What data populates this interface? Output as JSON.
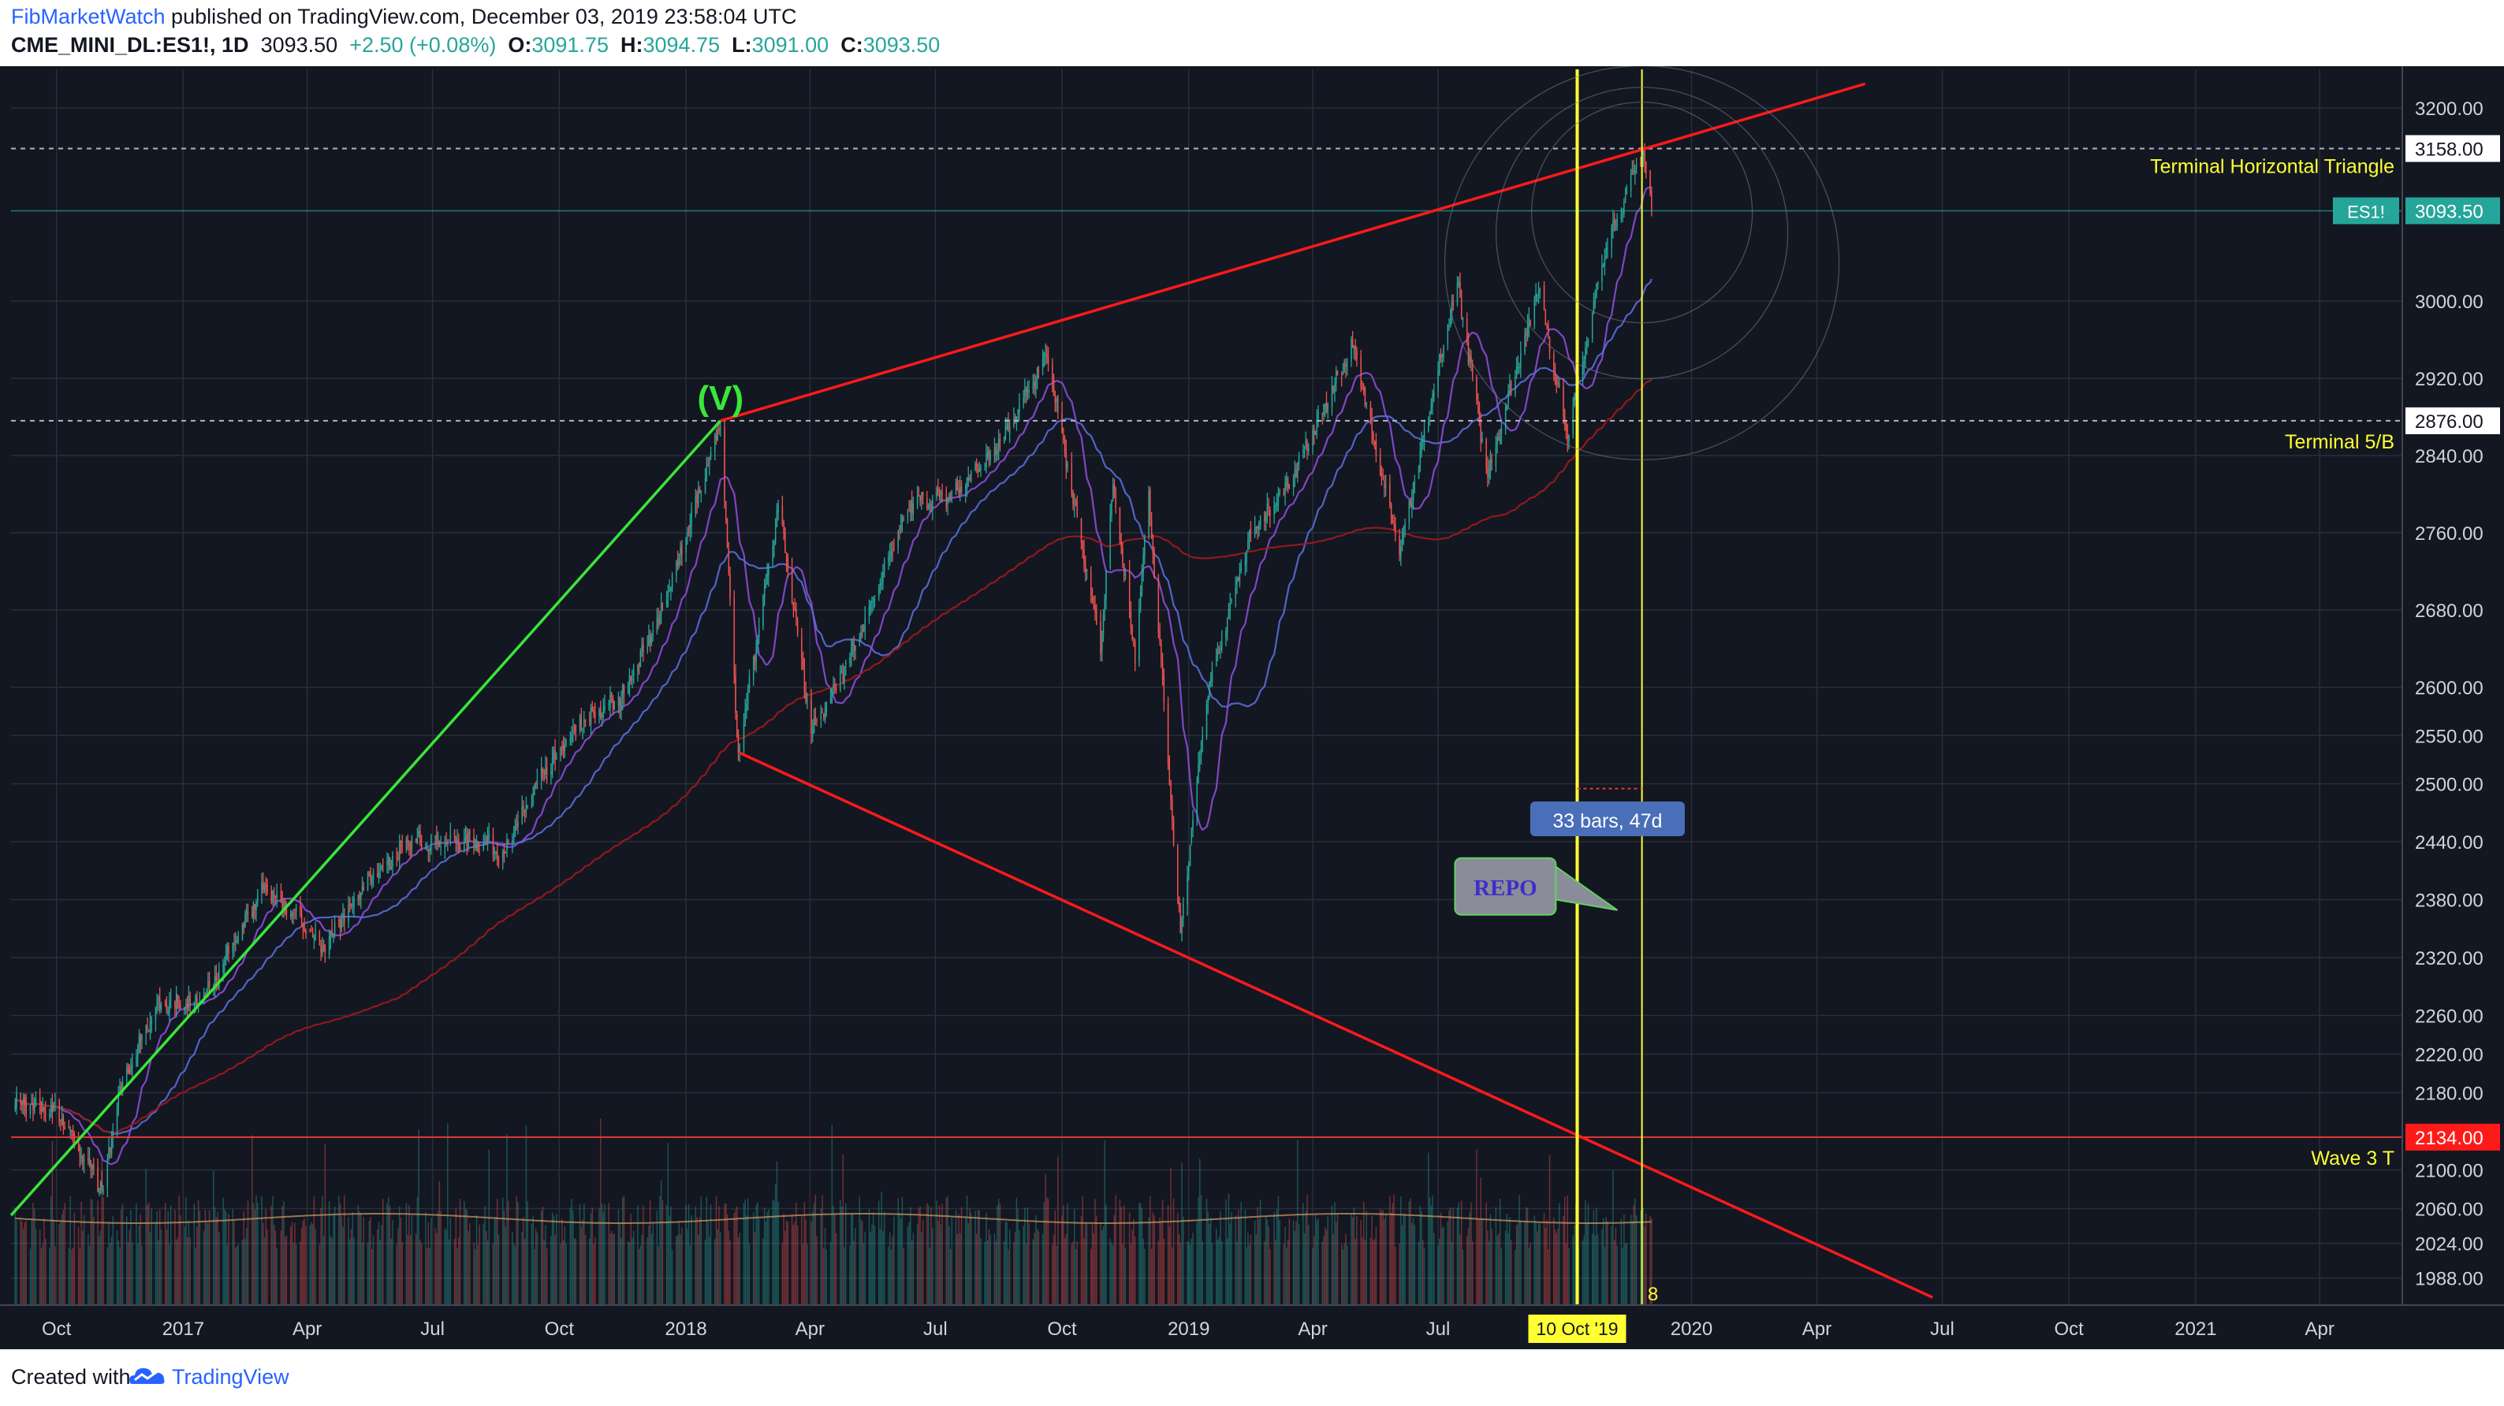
{
  "header": {
    "author": "FibMarketWatch",
    "published_text": " published on TradingView.com, December 03, 2019 23:58:04 UTC",
    "symbol": "CME_MINI_DL:ES1!, 1D",
    "last": "3093.50",
    "change": "+2.50 (+0.08%)",
    "o_label": "O:",
    "o": "3091.75",
    "h_label": "H:",
    "h": "3094.75",
    "l_label": "L:",
    "l": "3091.00",
    "c_label": "C:",
    "c": "3093.50"
  },
  "footer": {
    "created_with": "Created with",
    "brand": "TradingView"
  },
  "colors": {
    "background": "#131722",
    "grid": "#2a2e39",
    "up": "#26a69a",
    "down": "#ef5350",
    "red_line": "#ff1a1a",
    "green_line": "#39e639",
    "yellow": "#ffff33",
    "purple_ma": "#8c4bd6",
    "ma_blue": "#5b6bd6",
    "ma_red": "#a01a1a"
  },
  "chart_data": {
    "type": "candlestick",
    "title": "",
    "xlabel": "",
    "ylabel": "",
    "x_range": [
      "2016-08-29",
      "2021-05-31"
    ],
    "ylim": [
      1960,
      3240
    ],
    "y_ticks": [
      1988,
      2024,
      2060,
      2100,
      2134,
      2180,
      2220,
      2260,
      2320,
      2380,
      2440,
      2500,
      2550,
      2600,
      2680,
      2760,
      2840,
      2876,
      2920,
      3000,
      3093.5,
      3158,
      3200
    ],
    "y_tick_labels": [
      "1988.00",
      "2024.00",
      "2060.00",
      "2100.00",
      "2134.00",
      "2180.00",
      "2220.00",
      "2260.00",
      "2320.00",
      "2380.00",
      "2440.00",
      "2500.00",
      "2550.00",
      "2600.00",
      "2680.00",
      "2760.00",
      "2840.00",
      "2876.00",
      "2920.00",
      "3000.00",
      "3093.50",
      "3158.00",
      "3200.00"
    ],
    "x_ticks": [
      {
        "date": "2016-10-01",
        "label": "Oct"
      },
      {
        "date": "2017-01-01",
        "label": "2017"
      },
      {
        "date": "2017-04-01",
        "label": "Apr"
      },
      {
        "date": "2017-07-01",
        "label": "Jul"
      },
      {
        "date": "2017-10-01",
        "label": "Oct"
      },
      {
        "date": "2018-01-01",
        "label": "2018"
      },
      {
        "date": "2018-04-01",
        "label": "Apr"
      },
      {
        "date": "2018-07-01",
        "label": "Jul"
      },
      {
        "date": "2018-10-01",
        "label": "Oct"
      },
      {
        "date": "2019-01-01",
        "label": "2019"
      },
      {
        "date": "2019-04-01",
        "label": "Apr"
      },
      {
        "date": "2019-07-01",
        "label": "Jul"
      },
      {
        "date": "2020-01-01",
        "label": "2020"
      },
      {
        "date": "2020-04-01",
        "label": "Apr"
      },
      {
        "date": "2020-07-01",
        "label": "Jul"
      },
      {
        "date": "2020-10-01",
        "label": "Oct"
      },
      {
        "date": "2021-01-01",
        "label": "2021"
      },
      {
        "date": "2021-04-01",
        "label": "Apr"
      }
    ],
    "price_series": [
      [
        "2016-09-01",
        2170
      ],
      [
        "2016-10-01",
        2160
      ],
      [
        "2016-11-04",
        2080
      ],
      [
        "2016-11-15",
        2180
      ],
      [
        "2016-12-13",
        2270
      ],
      [
        "2017-01-15",
        2275
      ],
      [
        "2017-03-01",
        2395
      ],
      [
        "2017-04-13",
        2330
      ],
      [
        "2017-05-15",
        2400
      ],
      [
        "2017-06-15",
        2440
      ],
      [
        "2017-08-10",
        2440
      ],
      [
        "2017-08-21",
        2425
      ],
      [
        "2017-09-15",
        2500
      ],
      [
        "2017-10-15",
        2560
      ],
      [
        "2017-11-15",
        2590
      ],
      [
        "2017-12-15",
        2680
      ],
      [
        "2018-01-26",
        2872
      ],
      [
        "2018-02-08",
        2530
      ],
      [
        "2018-03-09",
        2790
      ],
      [
        "2018-04-02",
        2555
      ],
      [
        "2018-05-03",
        2640
      ],
      [
        "2018-06-13",
        2790
      ],
      [
        "2018-07-15",
        2800
      ],
      [
        "2018-08-15",
        2850
      ],
      [
        "2018-09-20",
        2945
      ],
      [
        "2018-10-29",
        2640
      ],
      [
        "2018-11-07",
        2810
      ],
      [
        "2018-11-23",
        2630
      ],
      [
        "2018-12-03",
        2800
      ],
      [
        "2018-12-26",
        2346
      ],
      [
        "2019-01-15",
        2600
      ],
      [
        "2019-02-15",
        2760
      ],
      [
        "2019-03-15",
        2810
      ],
      [
        "2019-04-30",
        2955
      ],
      [
        "2019-06-03",
        2740
      ],
      [
        "2019-07-15",
        3020
      ],
      [
        "2019-08-06",
        2820
      ],
      [
        "2019-09-12",
        3015
      ],
      [
        "2019-10-03",
        2860
      ],
      [
        "2019-10-28",
        3040
      ],
      [
        "2019-11-26",
        3158
      ],
      [
        "2019-12-03",
        3093.5
      ]
    ],
    "last_price": 3093.5,
    "symbol_label": "ES1!",
    "horizontal_levels": [
      {
        "price": 3158,
        "label": "Terminal Horizontal Triangle",
        "color": "#ffff33"
      },
      {
        "price": 2876,
        "label": "Terminal 5/B",
        "color": "#ffff33"
      },
      {
        "price": 2134,
        "label": "Wave 3 T",
        "color": "#ffff33"
      }
    ],
    "trendlines": [
      {
        "name": "upper-triangle-line",
        "from": [
          "2018-01-26",
          2876
        ],
        "to": [
          "2020-05-06",
          3225
        ],
        "color": "#ff1a1a"
      },
      {
        "name": "lower-triangle-line",
        "from": [
          "2018-02-09",
          2532
        ],
        "to": [
          "2020-06-24",
          1968
        ],
        "color": "#ff1a1a"
      },
      {
        "name": "wave-v-line",
        "from": [
          "2016-08-29",
          2053
        ],
        "to": [
          "2018-01-26",
          2876
        ],
        "color": "#39e639"
      }
    ],
    "vertical_lines": [
      {
        "date": "2019-10-10",
        "color": "#ffff33",
        "label": "10 Oct '19"
      },
      {
        "date": "2019-11-26",
        "color": "#ffff33",
        "label": "8"
      }
    ],
    "wave_label": {
      "text": "(V)",
      "date": "2018-01-26",
      "price": 2876
    },
    "measure_label": {
      "text": "33 bars, 47d",
      "date": "2019-11-01",
      "price": 2462
    },
    "callout": {
      "text": "REPO",
      "date": "2019-08-20",
      "price": 2392
    }
  }
}
